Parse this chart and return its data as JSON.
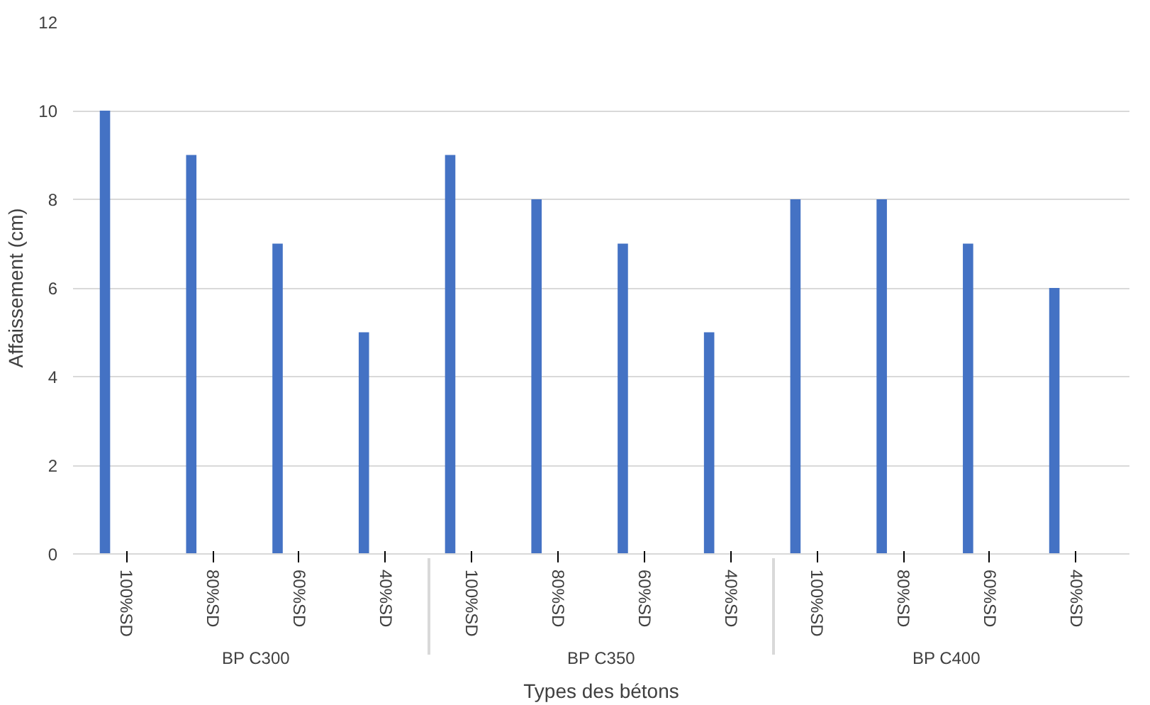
{
  "chart_data": {
    "type": "bar",
    "xlabel": "Types des bétons",
    "ylabel": "Affaissement (cm)",
    "categories": [
      "100%SD",
      "80%SD",
      "60%SD",
      "40%SD",
      "100%SD",
      "80%SD",
      "60%SD",
      "40%SD",
      "100%SD",
      "80%SD",
      "60%SD",
      "40%SD"
    ],
    "annotations": [
      "BP C300",
      "BP C350",
      "BP C400"
    ],
    "values": [
      10,
      9,
      7,
      5,
      9,
      8,
      7,
      5,
      8,
      8,
      7,
      6
    ],
    "color": "#4472c4",
    "ylim": [
      0,
      12
    ],
    "yticks": [
      0,
      2,
      4,
      6,
      8,
      10,
      12
    ],
    "grid": "y"
  }
}
